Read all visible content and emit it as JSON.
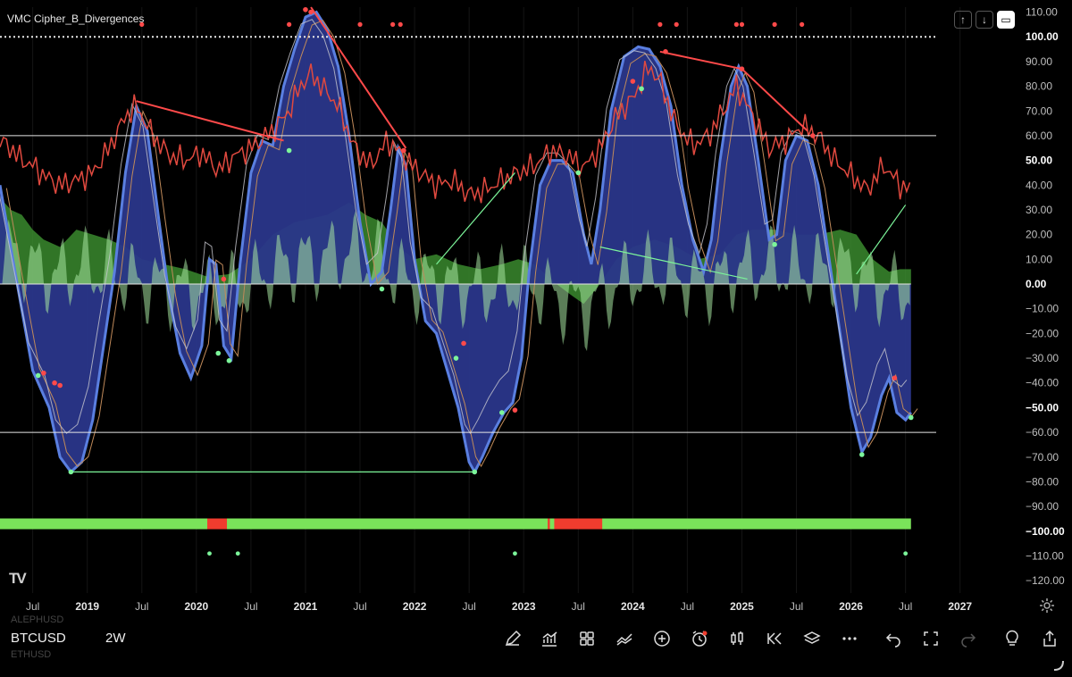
{
  "indicator": {
    "name": "VMC Cipher_B_Divergences"
  },
  "symbol": {
    "primary": "BTCUSD",
    "above": "ALEPHUSD",
    "below": "ETHUSD"
  },
  "interval": "2W",
  "colors": {
    "wave1": "#2a368a",
    "wave_line": "#5a7fe0",
    "money_flow_pos": "#3a8a2e",
    "money_flow_light": "#a6e3a1",
    "vwap": "#c8c8d0",
    "rsi": "#e0493f",
    "bull_dot": "#7cf59a",
    "bear_dot": "#ff4a4a",
    "bar_green": "#7ae35a",
    "bar_red": "#f03c2e"
  },
  "icons": [
    "pencil-icon",
    "indicators-icon",
    "grid-icon",
    "compare-icon",
    "plus-circle-icon",
    "alert-clock-icon",
    "candles-icon",
    "replay-icon",
    "layers-icon",
    "more-icon",
    "undo-icon",
    "fullscreen-icon",
    "redo-icon",
    "bulb-icon",
    "share-icon"
  ],
  "chart_data": {
    "type": "line",
    "title": "VMC Cipher_B_Divergences",
    "xlabel": "",
    "ylabel": "",
    "x_ticks": [
      "Jul",
      "2019",
      "Jul",
      "2020",
      "Jul",
      "2021",
      "Jul",
      "2022",
      "Jul",
      "2023",
      "Jul",
      "2024",
      "Jul",
      "2025",
      "Jul",
      "2026",
      "Jul",
      "2027"
    ],
    "ylim": [
      -125,
      112
    ],
    "y_ticks": [
      "110.00",
      "100.00",
      "90.00",
      "80.00",
      "70.00",
      "60.00",
      "50.00",
      "40.00",
      "30.00",
      "20.00",
      "10.00",
      "0.00",
      "−10.00",
      "−20.00",
      "−30.00",
      "−40.00",
      "−50.00",
      "−60.00",
      "−70.00",
      "−80.00",
      "−90.00",
      "−100.00",
      "−110.00",
      "−120.00"
    ],
    "bold_ticks": [
      "100.00",
      "50.00",
      "0.00",
      "−50.00",
      "−100.00"
    ],
    "reference_lines": [
      {
        "value": 100,
        "style": "dotted"
      },
      {
        "value": 60,
        "style": "solid"
      },
      {
        "value": -60,
        "style": "solid"
      }
    ],
    "x_range": [
      2018.2,
      2027.6
    ],
    "data_end_x": 2026.55,
    "wave": [
      [
        2018.2,
        40
      ],
      [
        2018.35,
        2
      ],
      [
        2018.5,
        -35
      ],
      [
        2018.65,
        -50
      ],
      [
        2018.75,
        -70
      ],
      [
        2018.85,
        -76
      ],
      [
        2018.95,
        -72
      ],
      [
        2019.05,
        -55
      ],
      [
        2019.15,
        -25
      ],
      [
        2019.25,
        5
      ],
      [
        2019.35,
        45
      ],
      [
        2019.45,
        72
      ],
      [
        2019.55,
        62
      ],
      [
        2019.65,
        28
      ],
      [
        2019.75,
        -5
      ],
      [
        2019.85,
        -28
      ],
      [
        2019.95,
        -38
      ],
      [
        2020.05,
        -25
      ],
      [
        2020.12,
        10
      ],
      [
        2020.18,
        8
      ],
      [
        2020.25,
        -25
      ],
      [
        2020.32,
        -30
      ],
      [
        2020.4,
        8
      ],
      [
        2020.5,
        45
      ],
      [
        2020.6,
        58
      ],
      [
        2020.7,
        56
      ],
      [
        2020.8,
        80
      ],
      [
        2020.9,
        95
      ],
      [
        2021.0,
        108
      ],
      [
        2021.1,
        110
      ],
      [
        2021.2,
        103
      ],
      [
        2021.3,
        88
      ],
      [
        2021.4,
        60
      ],
      [
        2021.5,
        25
      ],
      [
        2021.6,
        0
      ],
      [
        2021.7,
        5
      ],
      [
        2021.78,
        30
      ],
      [
        2021.85,
        55
      ],
      [
        2021.92,
        48
      ],
      [
        2022.0,
        10
      ],
      [
        2022.1,
        -15
      ],
      [
        2022.2,
        -20
      ],
      [
        2022.3,
        -35
      ],
      [
        2022.4,
        -50
      ],
      [
        2022.5,
        -72
      ],
      [
        2022.55,
        -76
      ],
      [
        2022.62,
        -70
      ],
      [
        2022.72,
        -60
      ],
      [
        2022.82,
        -52
      ],
      [
        2022.9,
        -48
      ],
      [
        2022.98,
        -30
      ],
      [
        2023.05,
        5
      ],
      [
        2023.15,
        40
      ],
      [
        2023.25,
        50
      ],
      [
        2023.35,
        50
      ],
      [
        2023.45,
        45
      ],
      [
        2023.55,
        20
      ],
      [
        2023.62,
        8
      ],
      [
        2023.7,
        30
      ],
      [
        2023.8,
        70
      ],
      [
        2023.92,
        92
      ],
      [
        2024.05,
        96
      ],
      [
        2024.15,
        95
      ],
      [
        2024.25,
        88
      ],
      [
        2024.35,
        72
      ],
      [
        2024.45,
        40
      ],
      [
        2024.55,
        18
      ],
      [
        2024.65,
        5
      ],
      [
        2024.72,
        18
      ],
      [
        2024.8,
        50
      ],
      [
        2024.9,
        80
      ],
      [
        2024.97,
        88
      ],
      [
        2025.05,
        80
      ],
      [
        2025.15,
        50
      ],
      [
        2025.25,
        18
      ],
      [
        2025.32,
        20
      ],
      [
        2025.4,
        50
      ],
      [
        2025.5,
        60
      ],
      [
        2025.6,
        58
      ],
      [
        2025.7,
        40
      ],
      [
        2025.8,
        10
      ],
      [
        2025.9,
        -20
      ],
      [
        2026.0,
        -50
      ],
      [
        2026.1,
        -68
      ],
      [
        2026.18,
        -62
      ],
      [
        2026.28,
        -45
      ],
      [
        2026.35,
        -38
      ],
      [
        2026.42,
        -52
      ],
      [
        2026.5,
        -55
      ],
      [
        2026.55,
        -52
      ]
    ],
    "money_flow": [
      [
        2018.2,
        35
      ],
      [
        2018.3,
        30
      ],
      [
        2018.4,
        28
      ],
      [
        2018.5,
        22
      ],
      [
        2018.6,
        18
      ],
      [
        2018.75,
        15
      ],
      [
        2018.9,
        22
      ],
      [
        2019.05,
        20
      ],
      [
        2019.2,
        18
      ],
      [
        2019.35,
        15
      ],
      [
        2019.5,
        10
      ],
      [
        2019.7,
        8
      ],
      [
        2019.9,
        6
      ],
      [
        2020.1,
        3
      ],
      [
        2020.3,
        4
      ],
      [
        2020.5,
        10
      ],
      [
        2020.7,
        20
      ],
      [
        2020.9,
        25
      ],
      [
        2021.0,
        26
      ],
      [
        2021.2,
        28
      ],
      [
        2021.4,
        33
      ],
      [
        2021.55,
        28
      ],
      [
        2021.7,
        25
      ],
      [
        2021.85,
        15
      ],
      [
        2022.0,
        10
      ],
      [
        2022.2,
        12
      ],
      [
        2022.4,
        8
      ],
      [
        2022.6,
        6
      ],
      [
        2022.8,
        8
      ],
      [
        2022.95,
        10
      ],
      [
        2023.1,
        8
      ],
      [
        2023.3,
        0
      ],
      [
        2023.45,
        -5
      ],
      [
        2023.55,
        -8
      ],
      [
        2023.7,
        0
      ],
      [
        2023.85,
        10
      ],
      [
        2024.0,
        15
      ],
      [
        2024.2,
        18
      ],
      [
        2024.4,
        15
      ],
      [
        2024.6,
        10
      ],
      [
        2024.8,
        12
      ],
      [
        2024.95,
        20
      ],
      [
        2025.1,
        22
      ],
      [
        2025.3,
        22
      ],
      [
        2025.5,
        20
      ],
      [
        2025.7,
        20
      ],
      [
        2025.9,
        22
      ],
      [
        2026.05,
        20
      ],
      [
        2026.2,
        10
      ],
      [
        2026.35,
        5
      ],
      [
        2026.45,
        6
      ],
      [
        2026.55,
        6
      ]
    ],
    "rsi_mfi": [
      [
        2018.2,
        58
      ],
      [
        2018.3,
        55
      ],
      [
        2018.4,
        50
      ],
      [
        2018.5,
        48
      ],
      [
        2018.6,
        44
      ],
      [
        2018.75,
        40
      ],
      [
        2018.9,
        42
      ],
      [
        2019.05,
        45
      ],
      [
        2019.2,
        55
      ],
      [
        2019.35,
        68
      ],
      [
        2019.45,
        72
      ],
      [
        2019.6,
        60
      ],
      [
        2019.75,
        52
      ],
      [
        2019.9,
        50
      ],
      [
        2020.05,
        53
      ],
      [
        2020.2,
        46
      ],
      [
        2020.35,
        52
      ],
      [
        2020.5,
        55
      ],
      [
        2020.7,
        62
      ],
      [
        2020.85,
        70
      ],
      [
        2020.95,
        80
      ],
      [
        2021.05,
        85
      ],
      [
        2021.15,
        80
      ],
      [
        2021.3,
        72
      ],
      [
        2021.45,
        55
      ],
      [
        2021.6,
        48
      ],
      [
        2021.75,
        58
      ],
      [
        2021.85,
        54
      ],
      [
        2022.0,
        47
      ],
      [
        2022.2,
        40
      ],
      [
        2022.35,
        42
      ],
      [
        2022.5,
        36
      ],
      [
        2022.65,
        38
      ],
      [
        2022.8,
        42
      ],
      [
        2022.95,
        45
      ],
      [
        2023.1,
        48
      ],
      [
        2023.25,
        54
      ],
      [
        2023.4,
        52
      ],
      [
        2023.55,
        47
      ],
      [
        2023.7,
        55
      ],
      [
        2023.85,
        68
      ],
      [
        2024.0,
        75
      ],
      [
        2024.15,
        88
      ],
      [
        2024.25,
        82
      ],
      [
        2024.4,
        64
      ],
      [
        2024.55,
        56
      ],
      [
        2024.7,
        60
      ],
      [
        2024.85,
        72
      ],
      [
        2024.95,
        80
      ],
      [
        2025.1,
        68
      ],
      [
        2025.25,
        55
      ],
      [
        2025.4,
        58
      ],
      [
        2025.55,
        64
      ],
      [
        2025.7,
        60
      ],
      [
        2025.85,
        50
      ],
      [
        2026.0,
        44
      ],
      [
        2026.15,
        38
      ],
      [
        2026.3,
        48
      ],
      [
        2026.45,
        40
      ],
      [
        2026.55,
        38
      ]
    ],
    "divergence_lines": [
      {
        "kind": "bear",
        "from": [
          2019.45,
          74
        ],
        "to": [
          2020.8,
          58
        ]
      },
      {
        "kind": "bear",
        "from": [
          2021.05,
          112
        ],
        "to": [
          2021.92,
          55
        ]
      },
      {
        "kind": "bear",
        "from": [
          2024.25,
          94
        ],
        "to": [
          2025.0,
          87
        ]
      },
      {
        "kind": "bear",
        "from": [
          2025.0,
          87
        ],
        "to": [
          2025.6,
          62
        ]
      },
      {
        "kind": "bull",
        "from": [
          2018.85,
          -76
        ],
        "to": [
          2022.55,
          -76
        ]
      },
      {
        "kind": "bull",
        "from": [
          2022.2,
          8
        ],
        "to": [
          2022.92,
          45
        ]
      },
      {
        "kind": "bull",
        "from": [
          2023.7,
          15
        ],
        "to": [
          2025.05,
          2
        ]
      },
      {
        "kind": "bull",
        "from": [
          2026.05,
          4
        ],
        "to": [
          2026.5,
          32
        ]
      }
    ],
    "bull_dots": [
      [
        2018.55,
        -37
      ],
      [
        2020.2,
        -28
      ],
      [
        2020.3,
        -31
      ],
      [
        2020.85,
        54
      ],
      [
        2021.7,
        -2
      ],
      [
        2022.38,
        -30
      ],
      [
        2022.8,
        -52
      ],
      [
        2023.5,
        45
      ],
      [
        2024.08,
        79
      ],
      [
        2025.3,
        16
      ],
      [
        2026.1,
        -69
      ],
      [
        2026.55,
        -54
      ],
      [
        2018.85,
        -76
      ],
      [
        2022.55,
        -76
      ]
    ],
    "bear_dots": [
      [
        2018.6,
        -36
      ],
      [
        2018.7,
        -40
      ],
      [
        2018.75,
        -41
      ],
      [
        2020.25,
        2
      ],
      [
        2021.0,
        111
      ],
      [
        2021.05,
        110
      ],
      [
        2021.9,
        54
      ],
      [
        2022.45,
        -24
      ],
      [
        2022.92,
        -51
      ],
      [
        2024.0,
        82
      ],
      [
        2024.3,
        94
      ],
      [
        2025.0,
        87
      ],
      [
        2025.65,
        60
      ],
      [
        2026.4,
        -38
      ]
    ],
    "top_dots": [
      2019.5,
      2020.85,
      2021.5,
      2021.8,
      2021.87,
      2024.25,
      2024.4,
      2024.95,
      2025.0,
      2025.3,
      2025.55
    ],
    "status_bar": {
      "y": -97,
      "red_segments": [
        [
          2020.1,
          2020.28
        ],
        [
          2023.22,
          2023.24
        ],
        [
          2023.28,
          2023.72
        ]
      ]
    },
    "bottom_dots": [
      2020.12,
      2020.38,
      2022.92,
      2026.5
    ]
  }
}
